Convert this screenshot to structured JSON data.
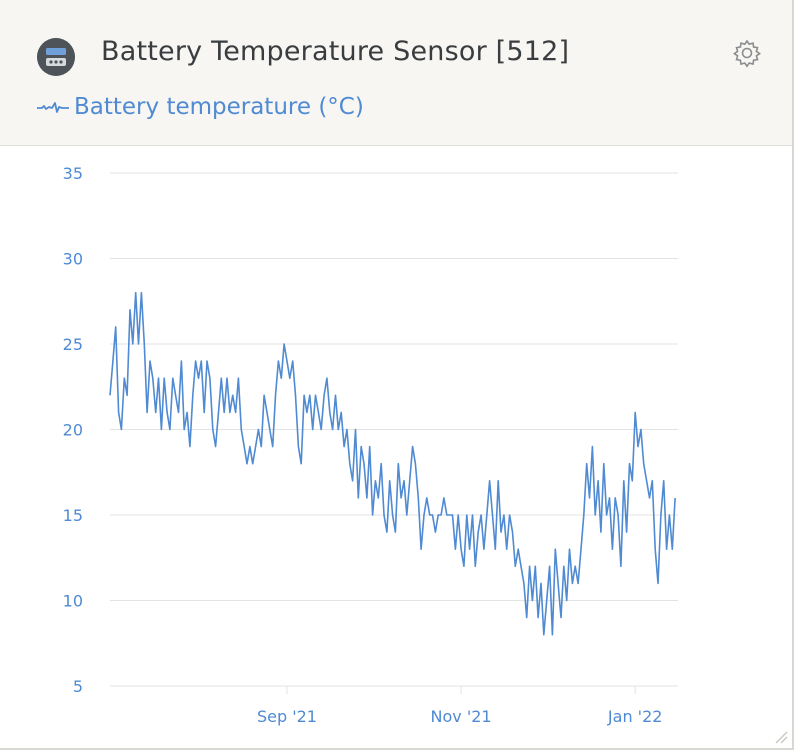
{
  "header": {
    "title": "Battery Temperature Sensor [512]",
    "metric_label": "Battery temperature (°C)"
  },
  "colors": {
    "line": "#4f8ad2",
    "axis_text": "#4f8ad2",
    "grid": "#e3e3e3",
    "title": "#3a3d40"
  },
  "icons": {
    "device": "battery-sensor-icon",
    "settings": "gear-icon",
    "metric": "sparkline-icon"
  },
  "chart_data": {
    "type": "line",
    "title": "",
    "xlabel": "",
    "ylabel": "",
    "ylim": [
      5,
      35
    ],
    "yticks": [
      5,
      10,
      15,
      20,
      25,
      30,
      35
    ],
    "xlim": [
      "2021-07-01",
      "2022-01-16"
    ],
    "xtick_labels": [
      {
        "date": "2021-09-01",
        "label": "Sep '21"
      },
      {
        "date": "2021-11-01",
        "label": "Nov '21"
      },
      {
        "date": "2022-01-01",
        "label": "Jan '22"
      }
    ],
    "grid": true,
    "series": [
      {
        "values": [
          [
            "2021-07-01",
            22
          ],
          [
            "2021-07-02",
            24
          ],
          [
            "2021-07-03",
            26
          ],
          [
            "2021-07-04",
            21
          ],
          [
            "2021-07-05",
            20
          ],
          [
            "2021-07-06",
            23
          ],
          [
            "2021-07-07",
            22
          ],
          [
            "2021-07-08",
            27
          ],
          [
            "2021-07-09",
            25
          ],
          [
            "2021-07-10",
            28
          ],
          [
            "2021-07-11",
            25
          ],
          [
            "2021-07-12",
            28
          ],
          [
            "2021-07-13",
            25
          ],
          [
            "2021-07-14",
            21
          ],
          [
            "2021-07-15",
            24
          ],
          [
            "2021-07-16",
            23
          ],
          [
            "2021-07-17",
            21
          ],
          [
            "2021-07-18",
            23
          ],
          [
            "2021-07-19",
            20
          ],
          [
            "2021-07-20",
            23
          ],
          [
            "2021-07-21",
            21
          ],
          [
            "2021-07-22",
            20
          ],
          [
            "2021-07-23",
            23
          ],
          [
            "2021-07-24",
            22
          ],
          [
            "2021-07-25",
            21
          ],
          [
            "2021-07-26",
            24
          ],
          [
            "2021-07-27",
            20
          ],
          [
            "2021-07-28",
            21
          ],
          [
            "2021-07-29",
            19
          ],
          [
            "2021-07-30",
            22
          ],
          [
            "2021-07-31",
            24
          ],
          [
            "2021-08-01",
            23
          ],
          [
            "2021-08-02",
            24
          ],
          [
            "2021-08-03",
            21
          ],
          [
            "2021-08-04",
            24
          ],
          [
            "2021-08-05",
            23
          ],
          [
            "2021-08-06",
            20
          ],
          [
            "2021-08-07",
            19
          ],
          [
            "2021-08-08",
            21
          ],
          [
            "2021-08-09",
            23
          ],
          [
            "2021-08-10",
            21
          ],
          [
            "2021-08-11",
            23
          ],
          [
            "2021-08-12",
            21
          ],
          [
            "2021-08-13",
            22
          ],
          [
            "2021-08-14",
            21
          ],
          [
            "2021-08-15",
            23
          ],
          [
            "2021-08-16",
            20
          ],
          [
            "2021-08-17",
            19
          ],
          [
            "2021-08-18",
            18
          ],
          [
            "2021-08-19",
            19
          ],
          [
            "2021-08-20",
            18
          ],
          [
            "2021-08-21",
            19
          ],
          [
            "2021-08-22",
            20
          ],
          [
            "2021-08-23",
            19
          ],
          [
            "2021-08-24",
            22
          ],
          [
            "2021-08-25",
            21
          ],
          [
            "2021-08-26",
            20
          ],
          [
            "2021-08-27",
            19
          ],
          [
            "2021-08-28",
            22
          ],
          [
            "2021-08-29",
            24
          ],
          [
            "2021-08-30",
            23
          ],
          [
            "2021-08-31",
            25
          ],
          [
            "2021-09-01",
            24
          ],
          [
            "2021-09-02",
            23
          ],
          [
            "2021-09-03",
            24
          ],
          [
            "2021-09-04",
            22
          ],
          [
            "2021-09-05",
            19
          ],
          [
            "2021-09-06",
            18
          ],
          [
            "2021-09-07",
            22
          ],
          [
            "2021-09-08",
            21
          ],
          [
            "2021-09-09",
            22
          ],
          [
            "2021-09-10",
            20
          ],
          [
            "2021-09-11",
            22
          ],
          [
            "2021-09-12",
            21
          ],
          [
            "2021-09-13",
            20
          ],
          [
            "2021-09-14",
            22
          ],
          [
            "2021-09-15",
            23
          ],
          [
            "2021-09-16",
            21
          ],
          [
            "2021-09-17",
            20
          ],
          [
            "2021-09-18",
            22
          ],
          [
            "2021-09-19",
            20
          ],
          [
            "2021-09-20",
            21
          ],
          [
            "2021-09-21",
            19
          ],
          [
            "2021-09-22",
            20
          ],
          [
            "2021-09-23",
            18
          ],
          [
            "2021-09-24",
            17
          ],
          [
            "2021-09-25",
            20
          ],
          [
            "2021-09-26",
            16
          ],
          [
            "2021-09-27",
            19
          ],
          [
            "2021-09-28",
            18
          ],
          [
            "2021-09-29",
            16
          ],
          [
            "2021-09-30",
            19
          ],
          [
            "2021-10-01",
            15
          ],
          [
            "2021-10-02",
            17
          ],
          [
            "2021-10-03",
            16
          ],
          [
            "2021-10-04",
            18
          ],
          [
            "2021-10-05",
            15
          ],
          [
            "2021-10-06",
            14
          ],
          [
            "2021-10-07",
            17
          ],
          [
            "2021-10-08",
            15
          ],
          [
            "2021-10-09",
            14
          ],
          [
            "2021-10-10",
            18
          ],
          [
            "2021-10-11",
            16
          ],
          [
            "2021-10-12",
            17
          ],
          [
            "2021-10-13",
            15
          ],
          [
            "2021-10-14",
            17
          ],
          [
            "2021-10-15",
            19
          ],
          [
            "2021-10-16",
            18
          ],
          [
            "2021-10-17",
            16
          ],
          [
            "2021-10-18",
            13
          ],
          [
            "2021-10-19",
            15
          ],
          [
            "2021-10-20",
            16
          ],
          [
            "2021-10-21",
            15
          ],
          [
            "2021-10-22",
            15
          ],
          [
            "2021-10-23",
            14
          ],
          [
            "2021-10-24",
            15
          ],
          [
            "2021-10-25",
            15
          ],
          [
            "2021-10-26",
            16
          ],
          [
            "2021-10-27",
            15
          ],
          [
            "2021-10-28",
            15
          ],
          [
            "2021-10-29",
            15
          ],
          [
            "2021-10-30",
            13
          ],
          [
            "2021-10-31",
            15
          ],
          [
            "2021-11-01",
            13
          ],
          [
            "2021-11-02",
            12
          ],
          [
            "2021-11-03",
            15
          ],
          [
            "2021-11-04",
            13
          ],
          [
            "2021-11-05",
            15
          ],
          [
            "2021-11-06",
            12
          ],
          [
            "2021-11-07",
            14
          ],
          [
            "2021-11-08",
            15
          ],
          [
            "2021-11-09",
            13
          ],
          [
            "2021-11-10",
            15
          ],
          [
            "2021-11-11",
            17
          ],
          [
            "2021-11-12",
            15
          ],
          [
            "2021-11-13",
            13
          ],
          [
            "2021-11-14",
            17
          ],
          [
            "2021-11-15",
            14
          ],
          [
            "2021-11-16",
            15
          ],
          [
            "2021-11-17",
            13
          ],
          [
            "2021-11-18",
            15
          ],
          [
            "2021-11-19",
            14
          ],
          [
            "2021-11-20",
            12
          ],
          [
            "2021-11-21",
            13
          ],
          [
            "2021-11-22",
            12
          ],
          [
            "2021-11-23",
            11
          ],
          [
            "2021-11-24",
            9
          ],
          [
            "2021-11-25",
            12
          ],
          [
            "2021-11-26",
            10
          ],
          [
            "2021-11-27",
            12
          ],
          [
            "2021-11-28",
            9
          ],
          [
            "2021-11-29",
            11
          ],
          [
            "2021-11-30",
            8
          ],
          [
            "2021-12-01",
            10
          ],
          [
            "2021-12-02",
            12
          ],
          [
            "2021-12-03",
            8
          ],
          [
            "2021-12-04",
            13
          ],
          [
            "2021-12-05",
            11
          ],
          [
            "2021-12-06",
            9
          ],
          [
            "2021-12-07",
            12
          ],
          [
            "2021-12-08",
            10
          ],
          [
            "2021-12-09",
            13
          ],
          [
            "2021-12-10",
            11
          ],
          [
            "2021-12-11",
            12
          ],
          [
            "2021-12-12",
            11
          ],
          [
            "2021-12-13",
            13
          ],
          [
            "2021-12-14",
            15
          ],
          [
            "2021-12-15",
            18
          ],
          [
            "2021-12-16",
            16
          ],
          [
            "2021-12-17",
            19
          ],
          [
            "2021-12-18",
            15
          ],
          [
            "2021-12-19",
            17
          ],
          [
            "2021-12-20",
            14
          ],
          [
            "2021-12-21",
            18
          ],
          [
            "2021-12-22",
            15
          ],
          [
            "2021-12-23",
            16
          ],
          [
            "2021-12-24",
            13
          ],
          [
            "2021-12-25",
            16
          ],
          [
            "2021-12-26",
            15
          ],
          [
            "2021-12-27",
            12
          ],
          [
            "2021-12-28",
            17
          ],
          [
            "2021-12-29",
            14
          ],
          [
            "2021-12-30",
            18
          ],
          [
            "2021-12-31",
            17
          ],
          [
            "2022-01-01",
            21
          ],
          [
            "2022-01-02",
            19
          ],
          [
            "2022-01-03",
            20
          ],
          [
            "2022-01-04",
            18
          ],
          [
            "2022-01-05",
            17
          ],
          [
            "2022-01-06",
            16
          ],
          [
            "2022-01-07",
            17
          ],
          [
            "2022-01-08",
            13
          ],
          [
            "2022-01-09",
            11
          ],
          [
            "2022-01-10",
            15
          ],
          [
            "2022-01-11",
            17
          ],
          [
            "2022-01-12",
            13
          ],
          [
            "2022-01-13",
            15
          ],
          [
            "2022-01-14",
            13
          ],
          [
            "2022-01-15",
            16
          ]
        ]
      }
    ]
  }
}
